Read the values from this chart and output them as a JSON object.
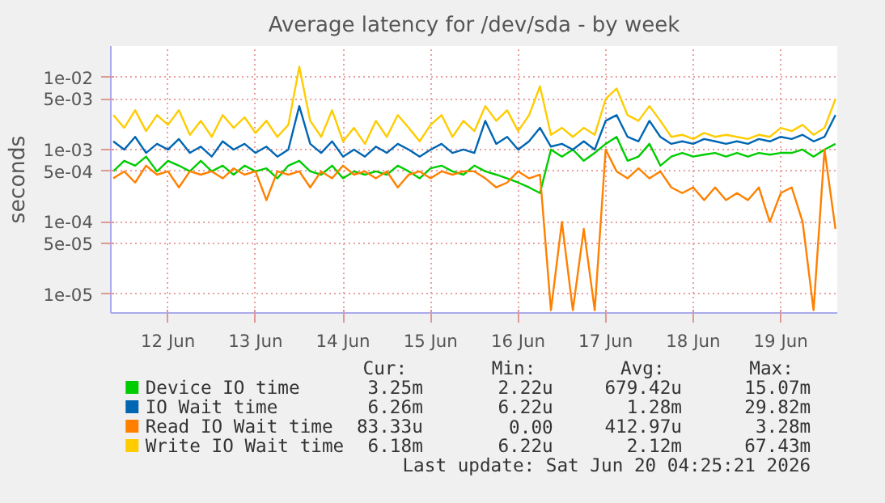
{
  "chart_data": {
    "type": "line",
    "title": "Average latency for /dev/sda - by week",
    "ylabel": "seconds",
    "x": [
      "2026-06-11T21:00",
      "2026-06-12T00:00",
      "2026-06-12T03:00",
      "2026-06-12T06:00",
      "2026-06-12T09:00",
      "2026-06-12T12:00",
      "2026-06-12T15:00",
      "2026-06-12T18:00",
      "2026-06-12T21:00",
      "2026-06-13T00:00",
      "2026-06-13T03:00",
      "2026-06-13T06:00",
      "2026-06-13T09:00",
      "2026-06-13T12:00",
      "2026-06-13T15:00",
      "2026-06-13T18:00",
      "2026-06-13T21:00",
      "2026-06-14T00:00",
      "2026-06-14T03:00",
      "2026-06-14T06:00",
      "2026-06-14T09:00",
      "2026-06-14T12:00",
      "2026-06-14T15:00",
      "2026-06-14T18:00",
      "2026-06-14T21:00",
      "2026-06-15T00:00",
      "2026-06-15T03:00",
      "2026-06-15T06:00",
      "2026-06-15T09:00",
      "2026-06-15T12:00",
      "2026-06-15T15:00",
      "2026-06-15T18:00",
      "2026-06-15T21:00",
      "2026-06-16T00:00",
      "2026-06-16T03:00",
      "2026-06-16T06:00",
      "2026-06-16T09:00",
      "2026-06-16T12:00",
      "2026-06-16T15:00",
      "2026-06-16T18:00",
      "2026-06-16T21:00",
      "2026-06-17T00:00",
      "2026-06-17T03:00",
      "2026-06-17T06:00",
      "2026-06-17T09:00",
      "2026-06-17T12:00",
      "2026-06-17T15:00",
      "2026-06-17T18:00",
      "2026-06-17T21:00",
      "2026-06-18T00:00",
      "2026-06-18T03:00",
      "2026-06-18T06:00",
      "2026-06-18T09:00",
      "2026-06-18T12:00",
      "2026-06-18T15:00",
      "2026-06-18T18:00",
      "2026-06-18T21:00",
      "2026-06-19T00:00",
      "2026-06-19T03:00",
      "2026-06-19T06:00",
      "2026-06-19T09:00",
      "2026-06-19T12:00",
      "2026-06-19T15:00",
      "2026-06-19T18:00",
      "2026-06-19T21:00",
      "2026-06-20T00:00",
      "2026-06-20T03:00"
    ],
    "series": [
      {
        "name": "Device IO time",
        "color": "#00cc00",
        "values": [
          0.0005,
          0.0007,
          0.0006,
          0.0008,
          0.0005,
          0.0007,
          0.0006,
          0.0005,
          0.0007,
          0.0005,
          0.0006,
          0.00045,
          0.0006,
          0.0005,
          0.00055,
          0.0004,
          0.0006,
          0.0007,
          0.0005,
          0.00045,
          0.0006,
          0.0004,
          0.0005,
          0.00045,
          0.0005,
          0.00045,
          0.0006,
          0.0005,
          0.0004,
          0.00055,
          0.0006,
          0.0005,
          0.00045,
          0.0006,
          0.0005,
          0.00045,
          0.0004,
          0.00035,
          0.0003,
          0.00025,
          0.001,
          0.0008,
          0.001,
          0.0007,
          0.0009,
          0.0012,
          0.0015,
          0.0007,
          0.0008,
          0.0012,
          0.0006,
          0.0008,
          0.0009,
          0.0008,
          0.00085,
          0.0009,
          0.0008,
          0.0009,
          0.0008,
          0.0009,
          0.00085,
          0.0009,
          0.0009,
          0.001,
          0.0008,
          0.001,
          0.0012
        ]
      },
      {
        "name": "IO Wait time",
        "color": "#0066b3",
        "values": [
          0.0013,
          0.001,
          0.0015,
          0.0009,
          0.0012,
          0.001,
          0.0014,
          0.0009,
          0.0011,
          0.0008,
          0.0013,
          0.001,
          0.0012,
          0.0009,
          0.0011,
          0.0008,
          0.001,
          0.004,
          0.0012,
          0.0009,
          0.0013,
          0.0008,
          0.001,
          0.0008,
          0.0011,
          0.0009,
          0.0012,
          0.001,
          0.0008,
          0.001,
          0.0012,
          0.0009,
          0.001,
          0.0009,
          0.0025,
          0.0012,
          0.0015,
          0.001,
          0.0013,
          0.002,
          0.0011,
          0.0012,
          0.001,
          0.0013,
          0.001,
          0.0025,
          0.003,
          0.0015,
          0.0013,
          0.0025,
          0.0015,
          0.0012,
          0.0013,
          0.0012,
          0.0014,
          0.0013,
          0.0012,
          0.0013,
          0.0012,
          0.0014,
          0.0013,
          0.0015,
          0.0014,
          0.0016,
          0.0013,
          0.0015,
          0.003
        ]
      },
      {
        "name": "Read IO Wait time",
        "color": "#ff8000",
        "values": [
          0.0004,
          0.0005,
          0.00035,
          0.0006,
          0.00045,
          0.0005,
          0.0003,
          0.0005,
          0.00045,
          0.0005,
          0.0004,
          0.00055,
          0.00045,
          0.0005,
          0.0002,
          0.0005,
          0.00045,
          0.0005,
          0.0003,
          0.0005,
          0.0004,
          0.0006,
          0.00045,
          0.0005,
          0.0004,
          0.0005,
          0.0003,
          0.00045,
          0.0005,
          0.0004,
          0.0005,
          0.00045,
          0.0005,
          0.0005,
          0.0004,
          0.0003,
          0.00035,
          0.0005,
          0.0004,
          0.00045,
          6e-06,
          0.0001,
          6e-06,
          8e-05,
          6e-06,
          0.001,
          0.0005,
          0.0004,
          0.00055,
          0.0004,
          0.0005,
          0.0003,
          0.00025,
          0.0003,
          0.0002,
          0.0003,
          0.0002,
          0.00025,
          0.0002,
          0.0003,
          0.0001,
          0.00025,
          0.0003,
          0.0001,
          6e-06,
          0.001,
          8e-05
        ]
      },
      {
        "name": "Write IO Wait time",
        "color": "#ffcc00",
        "values": [
          0.003,
          0.002,
          0.0035,
          0.0018,
          0.003,
          0.0022,
          0.0035,
          0.0016,
          0.0025,
          0.0015,
          0.003,
          0.002,
          0.0028,
          0.0017,
          0.0025,
          0.0015,
          0.0022,
          0.014,
          0.0025,
          0.0015,
          0.0035,
          0.0013,
          0.002,
          0.0012,
          0.0025,
          0.0015,
          0.003,
          0.002,
          0.0013,
          0.0022,
          0.003,
          0.0015,
          0.0025,
          0.0018,
          0.004,
          0.0025,
          0.0035,
          0.0018,
          0.003,
          0.0075,
          0.0016,
          0.002,
          0.0015,
          0.002,
          0.0016,
          0.005,
          0.007,
          0.003,
          0.0025,
          0.004,
          0.0025,
          0.0015,
          0.0016,
          0.0014,
          0.0017,
          0.0015,
          0.0016,
          0.0015,
          0.0014,
          0.0016,
          0.0015,
          0.002,
          0.0018,
          0.0022,
          0.0016,
          0.002,
          0.005
        ]
      }
    ],
    "log": "y",
    "ylim": [
      5.5e-06,
      0.027
    ],
    "yticks": [
      {
        "value": 1e-05,
        "label": "1e-05"
      },
      {
        "value": 5e-05,
        "label": "5e-05"
      },
      {
        "value": 0.0001,
        "label": "1e-04"
      },
      {
        "value": 0.0005,
        "label": "5e-04"
      },
      {
        "value": 0.001,
        "label": "1e-03"
      },
      {
        "value": 0.005,
        "label": "5e-03"
      },
      {
        "value": 0.01,
        "label": "1e-02"
      }
    ],
    "xlim": [
      "2026-06-11T20:20",
      "2026-06-20T03:30"
    ],
    "xticks": [
      {
        "value": "2026-06-12T12:00",
        "label": "12 Jun"
      },
      {
        "value": "2026-06-13T12:00",
        "label": "13 Jun"
      },
      {
        "value": "2026-06-14T12:00",
        "label": "14 Jun"
      },
      {
        "value": "2026-06-15T12:00",
        "label": "15 Jun"
      },
      {
        "value": "2026-06-16T12:00",
        "label": "16 Jun"
      },
      {
        "value": "2026-06-17T12:00",
        "label": "17 Jun"
      },
      {
        "value": "2026-06-18T12:00",
        "label": "18 Jun"
      },
      {
        "value": "2026-06-19T12:00",
        "label": "19 Jun"
      }
    ],
    "grid": true,
    "legend": "bottom",
    "line_style": "solid",
    "annotations": [
      "Cur:",
      "Min:",
      "Avg:",
      "Max:",
      "3.25m",
      "2.22u",
      "679.42u",
      "15.07m",
      "6.26m",
      "6.22u",
      "1.28m",
      "29.82m",
      "83.33u",
      "0.00",
      "412.97u",
      "3.28m",
      "6.18m",
      "6.22u",
      "2.12m",
      "67.43m",
      "Last update: Sat Jun 20 04:25:21 2026"
    ]
  }
}
